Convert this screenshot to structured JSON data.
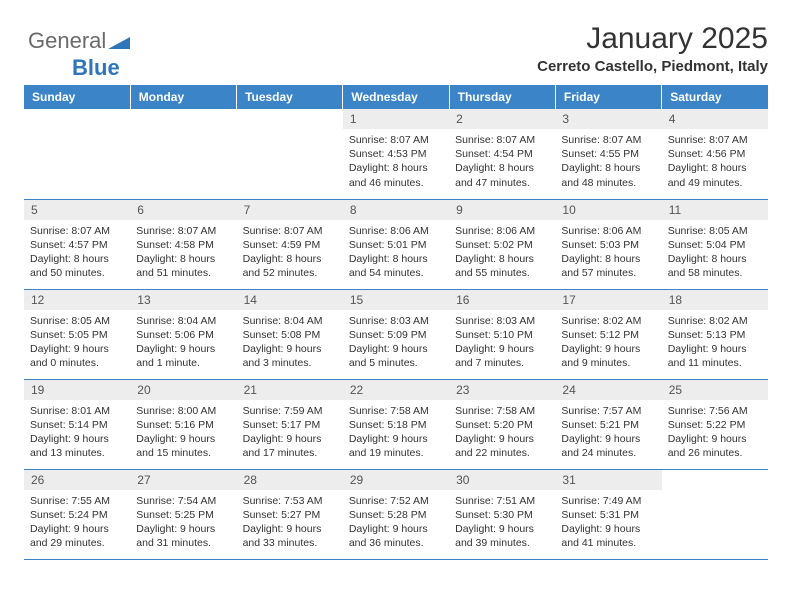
{
  "logo": {
    "text1": "General",
    "text2": "Blue"
  },
  "header": {
    "month": "January 2025",
    "location": "Cerreto Castello, Piedmont, Italy"
  },
  "colors": {
    "header_blue": "#3a84c7",
    "daynum_bg": "#ededed",
    "border": "#3a84c7",
    "logo_gray": "#6a6a6a",
    "logo_blue": "#2f76b9"
  },
  "dayNames": [
    "Sunday",
    "Monday",
    "Tuesday",
    "Wednesday",
    "Thursday",
    "Friday",
    "Saturday"
  ],
  "weeks": [
    [
      null,
      null,
      null,
      {
        "n": "1",
        "sr": "8:07 AM",
        "ss": "4:53 PM",
        "dl": "8 hours and 46 minutes."
      },
      {
        "n": "2",
        "sr": "8:07 AM",
        "ss": "4:54 PM",
        "dl": "8 hours and 47 minutes."
      },
      {
        "n": "3",
        "sr": "8:07 AM",
        "ss": "4:55 PM",
        "dl": "8 hours and 48 minutes."
      },
      {
        "n": "4",
        "sr": "8:07 AM",
        "ss": "4:56 PM",
        "dl": "8 hours and 49 minutes."
      }
    ],
    [
      {
        "n": "5",
        "sr": "8:07 AM",
        "ss": "4:57 PM",
        "dl": "8 hours and 50 minutes."
      },
      {
        "n": "6",
        "sr": "8:07 AM",
        "ss": "4:58 PM",
        "dl": "8 hours and 51 minutes."
      },
      {
        "n": "7",
        "sr": "8:07 AM",
        "ss": "4:59 PM",
        "dl": "8 hours and 52 minutes."
      },
      {
        "n": "8",
        "sr": "8:06 AM",
        "ss": "5:01 PM",
        "dl": "8 hours and 54 minutes."
      },
      {
        "n": "9",
        "sr": "8:06 AM",
        "ss": "5:02 PM",
        "dl": "8 hours and 55 minutes."
      },
      {
        "n": "10",
        "sr": "8:06 AM",
        "ss": "5:03 PM",
        "dl": "8 hours and 57 minutes."
      },
      {
        "n": "11",
        "sr": "8:05 AM",
        "ss": "5:04 PM",
        "dl": "8 hours and 58 minutes."
      }
    ],
    [
      {
        "n": "12",
        "sr": "8:05 AM",
        "ss": "5:05 PM",
        "dl": "9 hours and 0 minutes."
      },
      {
        "n": "13",
        "sr": "8:04 AM",
        "ss": "5:06 PM",
        "dl": "9 hours and 1 minute."
      },
      {
        "n": "14",
        "sr": "8:04 AM",
        "ss": "5:08 PM",
        "dl": "9 hours and 3 minutes."
      },
      {
        "n": "15",
        "sr": "8:03 AM",
        "ss": "5:09 PM",
        "dl": "9 hours and 5 minutes."
      },
      {
        "n": "16",
        "sr": "8:03 AM",
        "ss": "5:10 PM",
        "dl": "9 hours and 7 minutes."
      },
      {
        "n": "17",
        "sr": "8:02 AM",
        "ss": "5:12 PM",
        "dl": "9 hours and 9 minutes."
      },
      {
        "n": "18",
        "sr": "8:02 AM",
        "ss": "5:13 PM",
        "dl": "9 hours and 11 minutes."
      }
    ],
    [
      {
        "n": "19",
        "sr": "8:01 AM",
        "ss": "5:14 PM",
        "dl": "9 hours and 13 minutes."
      },
      {
        "n": "20",
        "sr": "8:00 AM",
        "ss": "5:16 PM",
        "dl": "9 hours and 15 minutes."
      },
      {
        "n": "21",
        "sr": "7:59 AM",
        "ss": "5:17 PM",
        "dl": "9 hours and 17 minutes."
      },
      {
        "n": "22",
        "sr": "7:58 AM",
        "ss": "5:18 PM",
        "dl": "9 hours and 19 minutes."
      },
      {
        "n": "23",
        "sr": "7:58 AM",
        "ss": "5:20 PM",
        "dl": "9 hours and 22 minutes."
      },
      {
        "n": "24",
        "sr": "7:57 AM",
        "ss": "5:21 PM",
        "dl": "9 hours and 24 minutes."
      },
      {
        "n": "25",
        "sr": "7:56 AM",
        "ss": "5:22 PM",
        "dl": "9 hours and 26 minutes."
      }
    ],
    [
      {
        "n": "26",
        "sr": "7:55 AM",
        "ss": "5:24 PM",
        "dl": "9 hours and 29 minutes."
      },
      {
        "n": "27",
        "sr": "7:54 AM",
        "ss": "5:25 PM",
        "dl": "9 hours and 31 minutes."
      },
      {
        "n": "28",
        "sr": "7:53 AM",
        "ss": "5:27 PM",
        "dl": "9 hours and 33 minutes."
      },
      {
        "n": "29",
        "sr": "7:52 AM",
        "ss": "5:28 PM",
        "dl": "9 hours and 36 minutes."
      },
      {
        "n": "30",
        "sr": "7:51 AM",
        "ss": "5:30 PM",
        "dl": "9 hours and 39 minutes."
      },
      {
        "n": "31",
        "sr": "7:49 AM",
        "ss": "5:31 PM",
        "dl": "9 hours and 41 minutes."
      },
      null
    ]
  ],
  "labels": {
    "sunrise": "Sunrise:",
    "sunset": "Sunset:",
    "daylight": "Daylight:"
  }
}
